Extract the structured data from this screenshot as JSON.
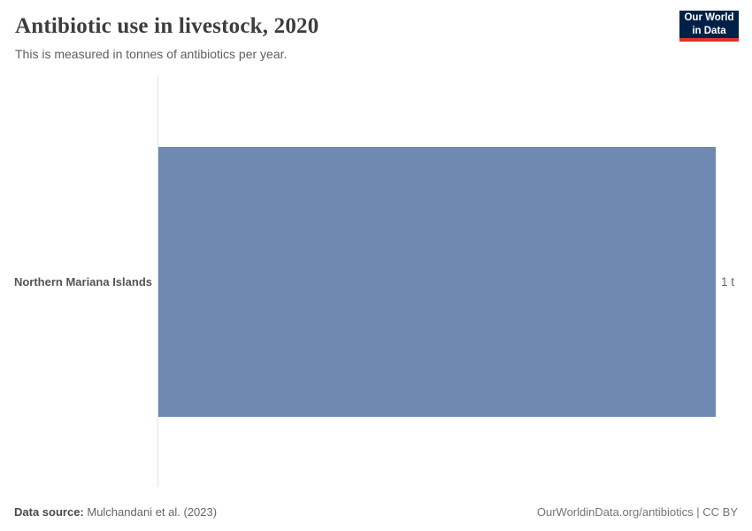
{
  "header": {
    "title": "Antibiotic use in livestock, 2020",
    "subtitle": "This is measured in tonnes of antibiotics per year.",
    "logo": {
      "line1": "Our World",
      "line2": "in Data",
      "background": "#002147",
      "accent": "#dc352e"
    }
  },
  "chart_data": {
    "type": "bar",
    "orientation": "horizontal",
    "title": "Antibiotic use in livestock, 2020",
    "subtitle": "This is measured in tonnes of antibiotics per year.",
    "categories": [
      "Northern Mariana Islands"
    ],
    "values": [
      1
    ],
    "value_labels": [
      "1 t"
    ],
    "unit": "tonnes of antibiotics per year",
    "xlim": [
      0,
      1
    ],
    "bar_color": "#6e89b2",
    "grid": false,
    "legend": "none",
    "axis_line_color": "#e2e2e2"
  },
  "footer": {
    "source_label": "Data source:",
    "source_value": " Mulchandani et al. (2023)",
    "link_text": "OurWorldinData.org/antibiotics | CC BY"
  }
}
